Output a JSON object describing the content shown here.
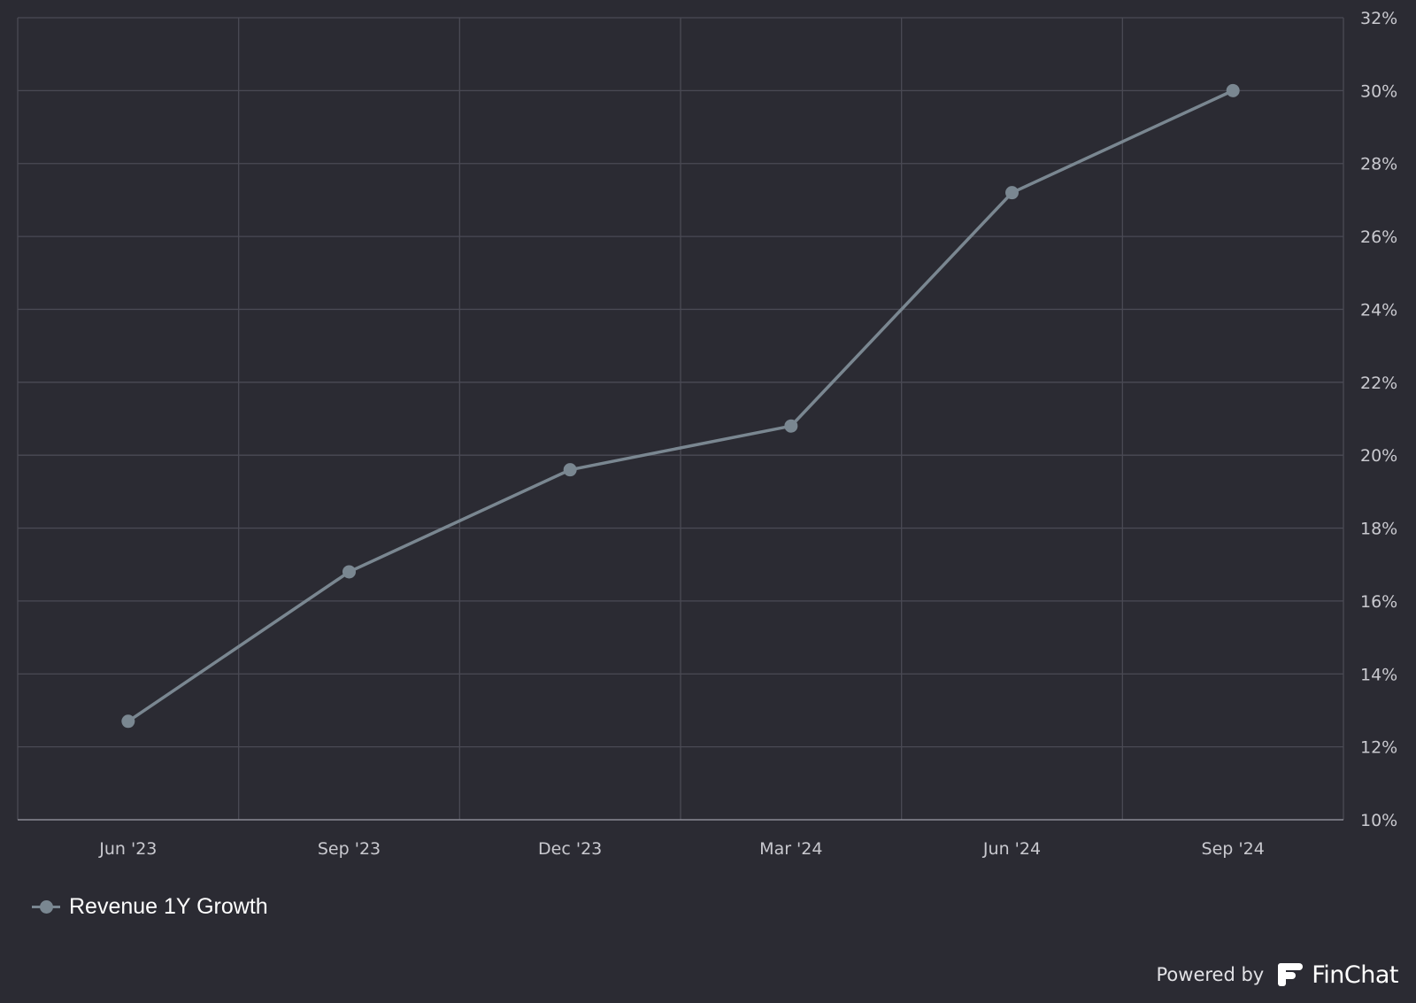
{
  "chart_data": {
    "type": "line",
    "categories": [
      "Jun '23",
      "Sep '23",
      "Dec '23",
      "Mar '24",
      "Jun '24",
      "Sep '24"
    ],
    "series": [
      {
        "name": "Revenue 1Y Growth",
        "values": [
          12.7,
          16.8,
          19.6,
          20.8,
          27.2,
          30.0
        ],
        "color": "#7a8791"
      }
    ],
    "y_ticks": [
      "10%",
      "12%",
      "14%",
      "16%",
      "18%",
      "20%",
      "22%",
      "24%",
      "26%",
      "28%",
      "30%",
      "32%"
    ],
    "ylim": [
      10,
      32
    ],
    "y_unit": "%",
    "y_axis_side": "right",
    "grid": true,
    "legend_position": "bottom-left"
  },
  "legend": {
    "label": "Revenue 1Y Growth"
  },
  "footer": {
    "powered_by": "Powered by",
    "brand": "FinChat"
  },
  "colors": {
    "background": "#2b2b33",
    "series": "#7a8791",
    "grid": "#4a4a54"
  }
}
